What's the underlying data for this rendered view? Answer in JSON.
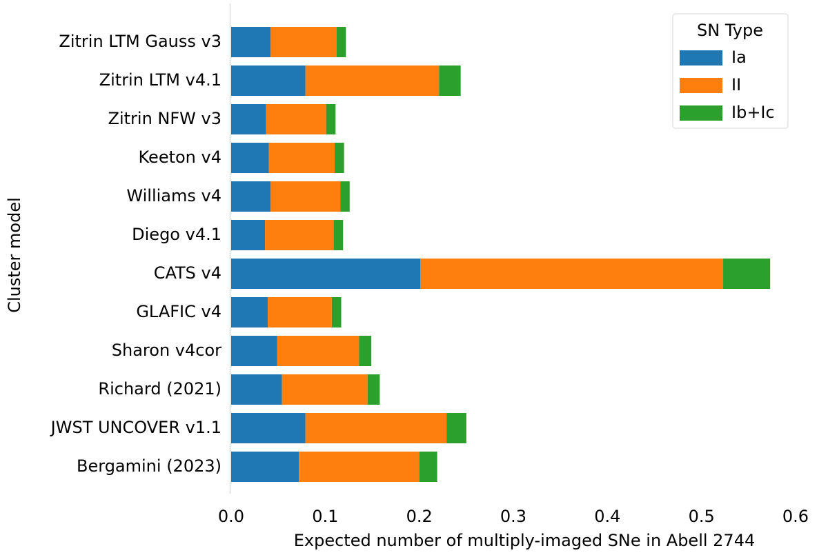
{
  "chart_data": {
    "type": "barh-stacked",
    "xlabel": "Expected number of multiply-imaged SNe in Abell 2744",
    "ylabel": "Cluster model",
    "categories": [
      "Zitrin LTM Gauss v3",
      "Zitrin LTM v4.1",
      "Zitrin NFW v3",
      "Keeton v4",
      "Williams v4",
      "Diego v4.1",
      "CATS v4",
      "GLAFIC v4",
      "Sharon v4cor",
      "Richard (2021)",
      "JWST UNCOVER v1.1",
      "Bergamini (2023)"
    ],
    "series": [
      {
        "name": "Ia",
        "color": "#1f77b4",
        "values": [
          0.042,
          0.079,
          0.037,
          0.04,
          0.042,
          0.036,
          0.201,
          0.039,
          0.049,
          0.054,
          0.079,
          0.072
        ]
      },
      {
        "name": "II",
        "color": "#ff7f0e",
        "values": [
          0.07,
          0.142,
          0.064,
          0.07,
          0.074,
          0.073,
          0.322,
          0.068,
          0.087,
          0.091,
          0.15,
          0.128
        ]
      },
      {
        "name": "Ib+Ic",
        "color": "#2ca02c",
        "values": [
          0.01,
          0.023,
          0.01,
          0.01,
          0.01,
          0.01,
          0.05,
          0.01,
          0.013,
          0.013,
          0.021,
          0.019
        ]
      }
    ],
    "xlim": [
      0,
      0.6
    ],
    "xticks": [
      {
        "value": 0,
        "label": "0.0"
      },
      0.1,
      0.2,
      0.3,
      0.4,
      0.5,
      0.6
    ],
    "legend_title": "SN Type",
    "legend": "upper right"
  }
}
